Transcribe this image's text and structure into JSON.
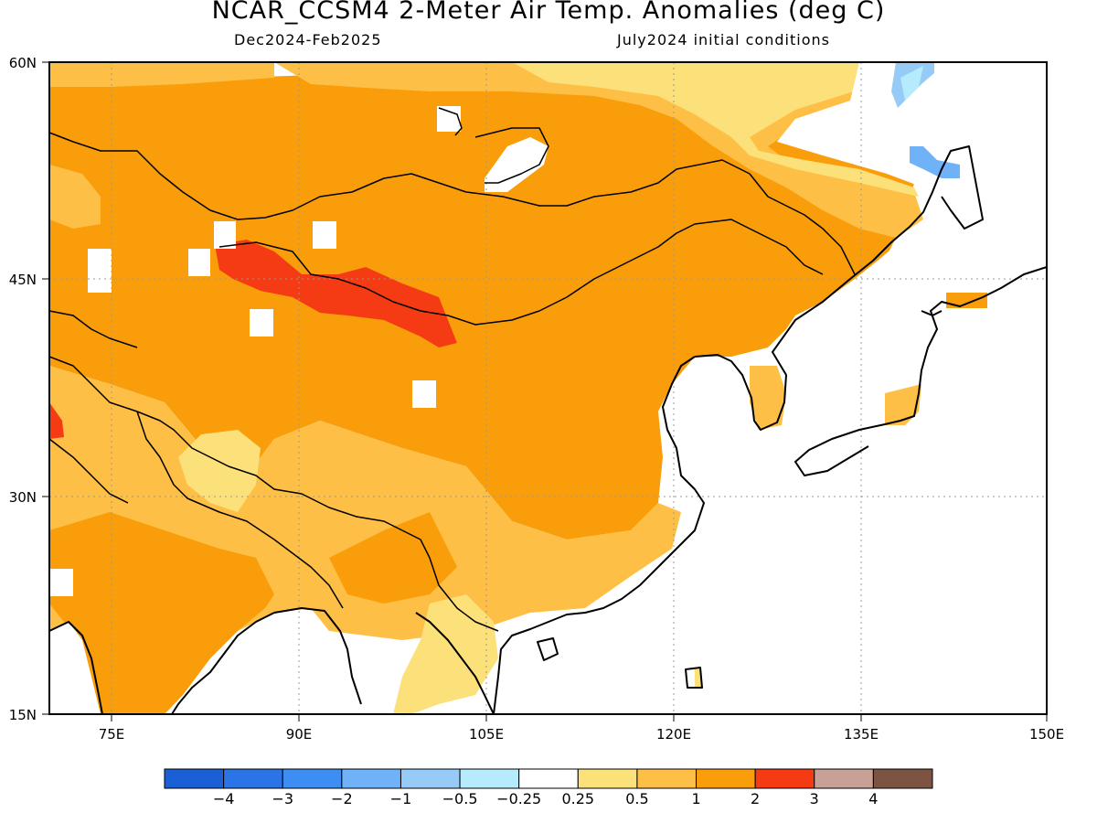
{
  "title": "NCAR_CCSM4 2-Meter Air Temp. Anomalies (deg C)",
  "subtitle_left": "Dec2024-Feb2025",
  "subtitle_right": "July2024 initial conditions",
  "map": {
    "lat_range": [
      15,
      60
    ],
    "lon_range": [
      70,
      150
    ],
    "lat_ticks": [
      "60N",
      "45N",
      "30N",
      "15N"
    ],
    "lon_ticks": [
      "75E",
      "90E",
      "105E",
      "120E",
      "135E",
      "150E"
    ]
  },
  "colorbar": {
    "colors": [
      "#1a5fd6",
      "#2a74e6",
      "#3d8ef2",
      "#70b2f7",
      "#96cbf8",
      "#b5ebfc",
      "#ffffff",
      "#fce07a",
      "#fdbf45",
      "#f99e0a",
      "#f43b14",
      "#c8a196",
      "#7d5344"
    ],
    "labels": [
      "−4",
      "−3",
      "−2",
      "−1",
      "−0.5",
      "−0.25",
      "0.25",
      "0.5",
      "1",
      "2",
      "3",
      "4"
    ]
  }
}
